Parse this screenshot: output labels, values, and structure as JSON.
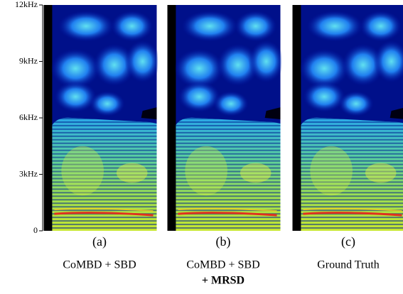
{
  "axis": {
    "ylim": [
      0,
      12
    ],
    "ticks": [
      {
        "value": 0,
        "label": "0"
      },
      {
        "value": 3,
        "label": "3kHz"
      },
      {
        "value": 6,
        "label": "6kHz"
      },
      {
        "value": 9,
        "label": "9kHz"
      },
      {
        "value": 12,
        "label": "12kHz"
      }
    ]
  },
  "panels": [
    {
      "label": "(a)",
      "caption": "CoMBD + SBD"
    },
    {
      "label": "(b)",
      "caption": "CoMBD + SBD",
      "caption_bold": "+ MRSD"
    },
    {
      "label": "(c)",
      "caption": "Ground Truth"
    }
  ]
}
